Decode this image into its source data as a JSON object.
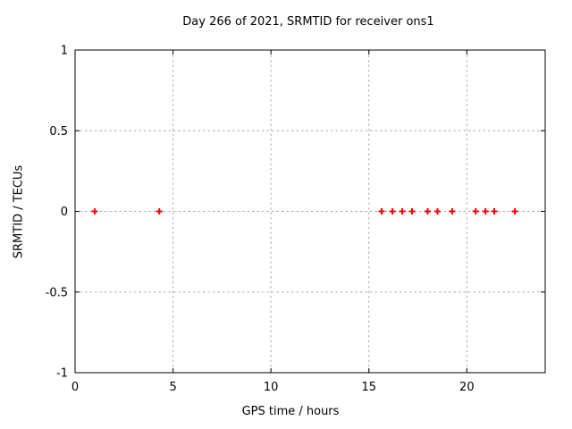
{
  "figure": {
    "background": "#ffffff",
    "border_color": "#000000",
    "grid_color": "#a9a9a9",
    "text_color": "#000000"
  },
  "chart_data": {
    "type": "scatter",
    "title": "Day 266 of 2021, SRMTID for receiver ons1",
    "xlabel": "GPS time / hours",
    "ylabel": "SRMTID / TECUs",
    "xlim": [
      0,
      24
    ],
    "ylim": [
      -1,
      1
    ],
    "xticks": [
      0,
      5,
      10,
      15,
      20
    ],
    "xtick_labels": [
      "0",
      "5",
      "10",
      "15",
      "20"
    ],
    "yticks": [
      -1,
      -0.5,
      0,
      0.5,
      1
    ],
    "ytick_labels": [
      "-1",
      "-0.5",
      "0",
      "0.5",
      "1"
    ],
    "grid": true,
    "legend_position": "none",
    "series": [
      {
        "name": "SRMTID",
        "marker": "plus",
        "color": "#ff0000",
        "x": [
          1.0,
          4.3,
          15.65,
          16.2,
          16.7,
          17.2,
          18.0,
          18.5,
          19.25,
          20.45,
          20.95,
          21.4,
          22.45
        ],
        "y": [
          0,
          0,
          0,
          0,
          0,
          0,
          0,
          0,
          0,
          0,
          0,
          0,
          0
        ]
      }
    ]
  }
}
